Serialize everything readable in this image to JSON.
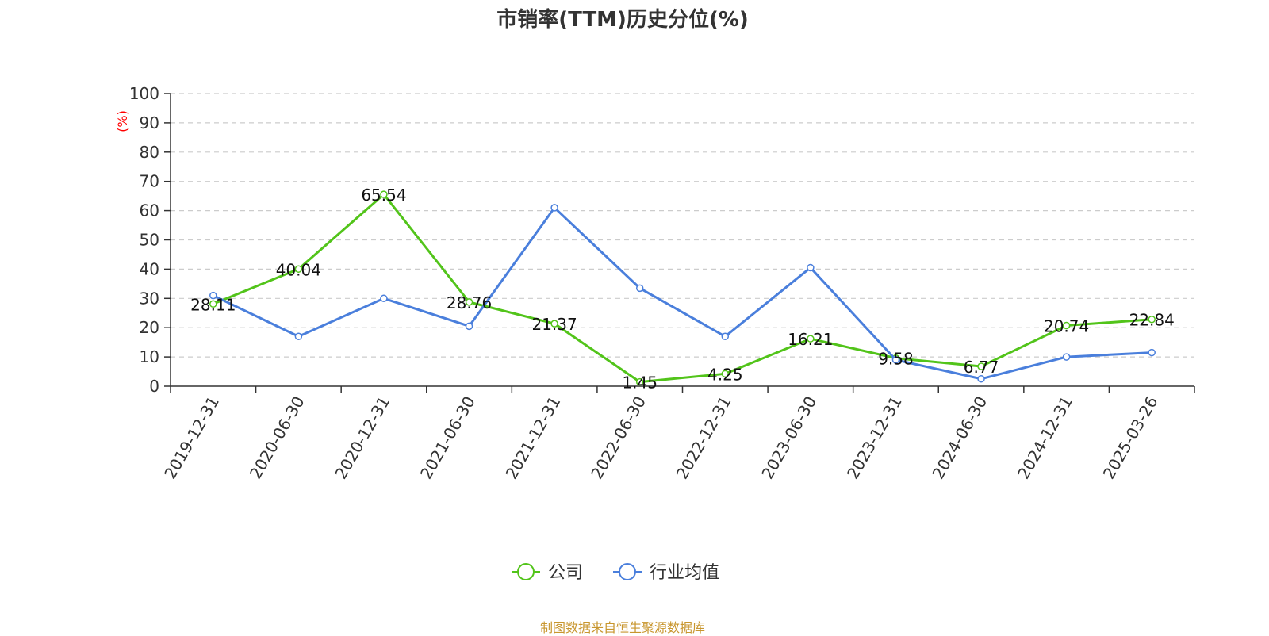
{
  "title": "市销率(TTM)历史分位(%)",
  "footer": "制图数据来自恒生聚源数据库",
  "colors": {
    "company": "#52c41a",
    "industry": "#4a7fdc",
    "unit_label": "#ff0000",
    "grid": "#cccccc",
    "axis": "#333333",
    "footer": "#c8962e"
  },
  "chart_data": {
    "type": "line",
    "title": "市销率(TTM)历史分位(%)",
    "ylabel": "(%)",
    "xlabel": "",
    "ylim": [
      0,
      100
    ],
    "yticks": [
      0,
      10,
      20,
      30,
      40,
      50,
      60,
      70,
      80,
      90,
      100
    ],
    "grid": true,
    "legend_position": "bottom-center",
    "categories": [
      "2019-12-31",
      "2020-06-30",
      "2020-12-31",
      "2021-06-30",
      "2021-12-31",
      "2022-06-30",
      "2022-12-31",
      "2023-06-30",
      "2023-12-31",
      "2024-06-30",
      "2024-12-31",
      "2025-03-26"
    ],
    "series": [
      {
        "name": "公司",
        "color": "#52c41a",
        "values": [
          28.11,
          40.04,
          65.54,
          28.76,
          21.37,
          1.45,
          4.25,
          16.21,
          9.58,
          6.77,
          20.74,
          22.84
        ],
        "labels": [
          "28.11",
          "40.04",
          "65.54",
          "28.76",
          "21.37",
          "1.45",
          "4.25",
          "16.21",
          "9.58",
          "6.77",
          "20.74",
          "22.84"
        ]
      },
      {
        "name": "行业均值",
        "color": "#4a7fdc",
        "values": [
          31,
          17,
          30,
          20.5,
          61,
          33.5,
          17,
          40.5,
          9,
          2.5,
          10,
          11.5
        ]
      }
    ]
  }
}
